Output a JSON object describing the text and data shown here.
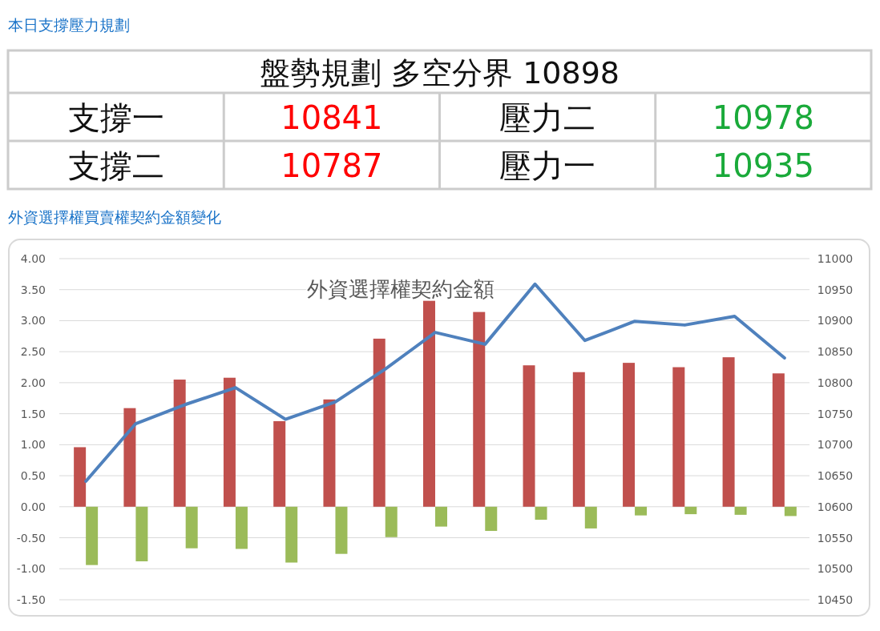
{
  "chart_data": [
    {
      "type": "other",
      "title": "本日支撐壓力規劃",
      "annotations": [
        "盤勢規劃 多空分界 10898",
        "支撐一",
        "10841",
        "壓力二",
        "10978",
        "支撐二",
        "10787",
        "壓力一",
        "10935"
      ]
    },
    {
      "type": "bar",
      "title": "外資選擇權買賣權契約金額變化",
      "annotations": [
        "外資選擇權契約金額"
      ],
      "categories": [
        null,
        null,
        null,
        null,
        null,
        null,
        null,
        null,
        null,
        null,
        null,
        null,
        null,
        null,
        null
      ],
      "series": [
        {
          "color": "#c0504d",
          "values": [
            0.96,
            1.59,
            2.05,
            2.08,
            1.38,
            1.73,
            2.71,
            3.32,
            3.14,
            2.28,
            2.17,
            2.32,
            2.25,
            2.41,
            2.15
          ]
        },
        {
          "color": "#9bbb59",
          "values": [
            -0.94,
            -0.88,
            -0.67,
            -0.68,
            -0.9,
            -0.76,
            -0.49,
            -0.32,
            -0.39,
            -0.21,
            -0.35,
            -0.14,
            -0.12,
            -0.13,
            -0.15
          ]
        },
        {
          "type": "line",
          "axis": "y2",
          "color": "#4f81bd",
          "values": [
            10641,
            10734,
            10765,
            10792,
            10741,
            10769,
            10822,
            10881,
            10862,
            10959,
            10868,
            10899,
            10893,
            10907,
            10840
          ]
        }
      ],
      "ylim": [
        -1.5,
        4
      ],
      "yticks": [
        {
          "value": -1.5,
          "label": "-1.50"
        },
        {
          "value": -1,
          "label": "-1.00"
        },
        {
          "value": -0.5,
          "label": "-0.50"
        },
        {
          "value": 0,
          "label": "0.00"
        },
        {
          "value": 0.5,
          "label": "0.50"
        },
        {
          "value": 1,
          "label": "1.00"
        },
        {
          "value": 1.5,
          "label": "1.50"
        },
        {
          "value": 2,
          "label": "2.00"
        },
        {
          "value": 2.5,
          "label": "2.50"
        },
        {
          "value": 3,
          "label": "3.00"
        },
        {
          "value": 3.5,
          "label": "3.50"
        },
        {
          "value": 4,
          "label": "4.00"
        }
      ],
      "y2lim": [
        10450,
        11000
      ],
      "y2ticks": [
        10450,
        10500,
        10550,
        10600,
        10650,
        10700,
        10750,
        10800,
        10850,
        10900,
        10950,
        11000
      ],
      "grid": "y"
    }
  ]
}
